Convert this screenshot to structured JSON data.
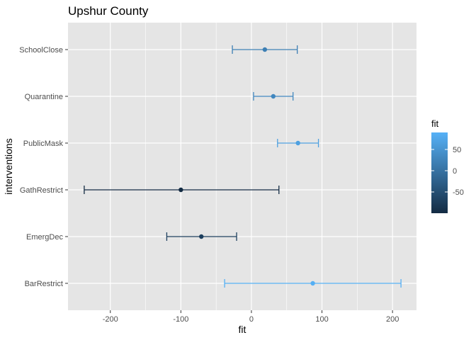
{
  "chart_data": {
    "type": "scatter",
    "title": "Upshur County",
    "xlabel": "fit",
    "ylabel": "interventions",
    "xlim": [
      -260,
      234
    ],
    "x_ticks": [
      -200,
      -100,
      0,
      100,
      200
    ],
    "x_tick_labels": [
      "-200",
      "-100",
      "0",
      "100",
      "200"
    ],
    "categories": [
      "SchoolClose",
      "Quarantine",
      "PublicMask",
      "GathRestrict",
      "EmergDec",
      "BarRestrict"
    ],
    "series": [
      {
        "points": [
          {
            "category": "SchoolClose",
            "fit": 19,
            "lower": -27,
            "upper": 65
          },
          {
            "category": "Quarantine",
            "fit": 31,
            "lower": 3,
            "upper": 59
          },
          {
            "category": "PublicMask",
            "fit": 66,
            "lower": 37,
            "upper": 95
          },
          {
            "category": "GathRestrict",
            "fit": -100,
            "lower": -237,
            "upper": 39
          },
          {
            "category": "EmergDec",
            "fit": -71,
            "lower": -120,
            "upper": -21
          },
          {
            "category": "BarRestrict",
            "fit": 87,
            "lower": -38,
            "upper": 212
          }
        ]
      }
    ],
    "grid": true,
    "legend": {
      "title": "fit",
      "position": "right",
      "type": "colorbar",
      "range": [
        -100,
        90
      ],
      "ticks": [
        50,
        0,
        -50
      ],
      "tick_labels": [
        "50",
        "0",
        "-50"
      ],
      "low_color": "#132b43",
      "high_color": "#56b1f7"
    },
    "colors": {
      "panel_background": "#e5e5e5",
      "grid": "#ffffff"
    }
  }
}
